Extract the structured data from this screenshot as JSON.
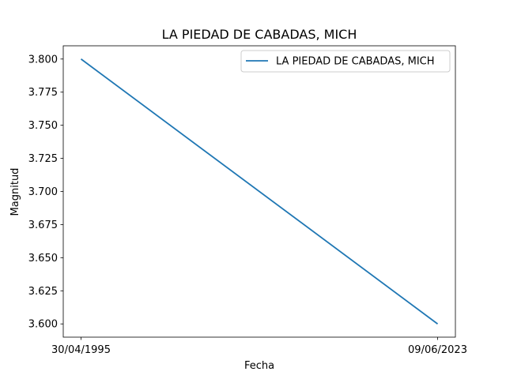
{
  "chart_data": {
    "type": "line",
    "title": "LA PIEDAD DE CABADAS, MICH",
    "xlabel": "Fecha",
    "ylabel": "Magnitud",
    "categories": [
      "30/04/1995",
      "09/06/2023"
    ],
    "series": [
      {
        "name": "LA PIEDAD DE CABADAS, MICH",
        "values": [
          3.8,
          3.6
        ],
        "color": "#1f77b4"
      }
    ],
    "yticks": [
      "3.600",
      "3.625",
      "3.650",
      "3.675",
      "3.700",
      "3.725",
      "3.750",
      "3.775",
      "3.800"
    ],
    "ylim": [
      3.59,
      3.81
    ],
    "legend": "top-right",
    "grid": false
  }
}
